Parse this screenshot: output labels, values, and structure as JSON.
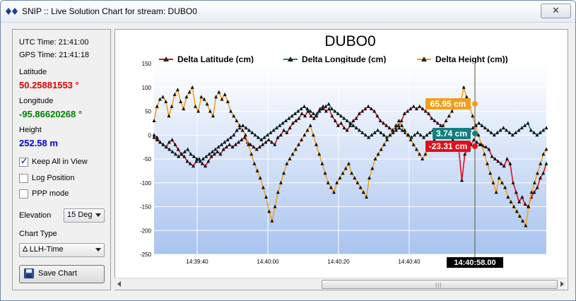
{
  "window": {
    "title": "SNIP :: Live Solution Chart for stream:  DUBO0",
    "close_label": "✕"
  },
  "left_panel": {
    "utc_time": "UTC Time: 21:41:00",
    "gps_time": "GPS Time: 21:41:18",
    "latitude_label": "Latitude",
    "latitude_value": "50.25881553 °",
    "longitude_label": "Longitude",
    "longitude_value": "-95.86620268 °",
    "height_label": "Height",
    "height_value": "252.58 m",
    "options": [
      {
        "label": "Keep All in View",
        "checked": true
      },
      {
        "label": "Log Position",
        "checked": false
      },
      {
        "label": "PPP mode",
        "checked": false
      }
    ],
    "elevation_label": "Elevation",
    "elevation_value": "15 Deg",
    "chart_type_label": "Chart Type",
    "chart_type_value": "Δ LLH-Time",
    "save_button": "Save Chart"
  },
  "chart_data": {
    "type": "line",
    "title": "DUBO0",
    "y_ticks": [
      150,
      100,
      50,
      0,
      -50,
      -100,
      -150,
      -200,
      -250
    ],
    "ylim": [
      -250,
      150
    ],
    "x_tick_labels": [
      "14:39:40",
      "14:40:00",
      "14:40:20",
      "14:40:40"
    ],
    "grid": true,
    "legend_position": "top",
    "cursor_time": "14:40:58.00",
    "series": [
      {
        "name": "Delta Latitude (cm)",
        "color": "#e0101a",
        "cursor_label": "-23.31 cm",
        "values": [
          0,
          -5,
          -15,
          -20,
          -25,
          -15,
          -10,
          -20,
          -30,
          -40,
          -45,
          -55,
          -60,
          -65,
          -55,
          -50,
          -60,
          -65,
          -55,
          -45,
          -40,
          -35,
          -40,
          -30,
          -25,
          -20,
          -25,
          -20,
          -15,
          -10,
          -5,
          -15,
          -20,
          -25,
          -30,
          -25,
          -20,
          -15,
          -10,
          -15,
          -20,
          -5,
          0,
          10,
          5,
          15,
          25,
          30,
          35,
          45,
          40,
          50,
          40,
          35,
          45,
          55,
          60,
          50,
          55,
          40,
          30,
          20,
          25,
          15,
          10,
          20,
          30,
          35,
          45,
          50,
          55,
          60,
          55,
          50,
          40,
          30,
          25,
          20,
          15,
          10,
          15,
          20,
          30,
          45,
          50,
          55,
          60,
          55,
          60,
          55,
          50,
          45,
          35,
          30,
          25,
          20,
          10,
          5,
          0,
          -10,
          -20,
          -30,
          -95,
          -40,
          -30,
          -20,
          -10,
          -15,
          -20,
          -23,
          -25,
          -30,
          -45,
          -50,
          -55,
          -60,
          -65,
          -50,
          -60,
          -100,
          -120,
          -140,
          -130,
          -145,
          -150,
          -130,
          -120,
          -110,
          -90,
          -80,
          -60
        ]
      },
      {
        "name": "Delta Longitude (cm)",
        "color": "#138080",
        "cursor_label": "3.74 cm",
        "values": [
          -5,
          -10,
          -15,
          -20,
          -25,
          -30,
          -35,
          -40,
          -45,
          -40,
          -35,
          -30,
          -40,
          -45,
          -50,
          -55,
          -50,
          -45,
          -40,
          -35,
          -30,
          -25,
          -20,
          -15,
          -10,
          -5,
          0,
          10,
          15,
          20,
          15,
          10,
          5,
          0,
          -5,
          -10,
          -5,
          0,
          5,
          10,
          15,
          20,
          25,
          30,
          35,
          40,
          45,
          50,
          55,
          60,
          55,
          50,
          45,
          40,
          50,
          55,
          60,
          65,
          55,
          50,
          45,
          40,
          35,
          30,
          25,
          20,
          15,
          10,
          5,
          0,
          -5,
          0,
          5,
          10,
          5,
          0,
          -5,
          0,
          5,
          10,
          15,
          10,
          5,
          0,
          -5,
          0,
          5,
          0,
          -5,
          0,
          5,
          10,
          5,
          0,
          5,
          10,
          5,
          0,
          -5,
          0,
          3,
          4,
          5,
          10,
          15,
          20,
          25,
          20,
          15,
          10,
          5,
          0,
          5,
          10,
          15,
          10,
          5,
          0,
          5,
          10,
          15,
          20,
          25,
          10,
          5,
          0,
          5,
          10,
          15
        ]
      },
      {
        "name": "Delta Height (cm))",
        "color": "#f0a020",
        "cursor_label": "65.95 cm",
        "values": [
          30,
          60,
          75,
          80,
          70,
          40,
          60,
          85,
          95,
          70,
          55,
          80,
          90,
          100,
          60,
          50,
          80,
          75,
          65,
          50,
          40,
          80,
          90,
          75,
          85,
          70,
          50,
          40,
          30,
          20,
          10,
          0,
          -20,
          -40,
          -60,
          -75,
          -90,
          -110,
          -130,
          -160,
          -180,
          -150,
          -120,
          -100,
          -80,
          -60,
          -50,
          -40,
          -30,
          -20,
          -10,
          0,
          10,
          20,
          0,
          -20,
          -40,
          -60,
          -80,
          -100,
          -110,
          -120,
          -100,
          -90,
          -80,
          -70,
          -60,
          -80,
          -90,
          -100,
          -110,
          -120,
          -130,
          -90,
          -70,
          -50,
          -40,
          -30,
          -20,
          -10,
          0,
          10,
          20,
          30,
          20,
          10,
          0,
          -10,
          -20,
          -30,
          -40,
          -50,
          -40,
          -30,
          -20,
          -10,
          0,
          10,
          20,
          30,
          40,
          50,
          60,
          66,
          70,
          100,
          80,
          60,
          40,
          20,
          0,
          -20,
          -40,
          -60,
          -80,
          -100,
          -120,
          -90,
          -100,
          -110,
          -130,
          -140,
          -150,
          -160,
          -170,
          -180,
          -190,
          -150,
          -120,
          -100,
          -80,
          -60,
          -40,
          -30
        ]
      }
    ]
  }
}
